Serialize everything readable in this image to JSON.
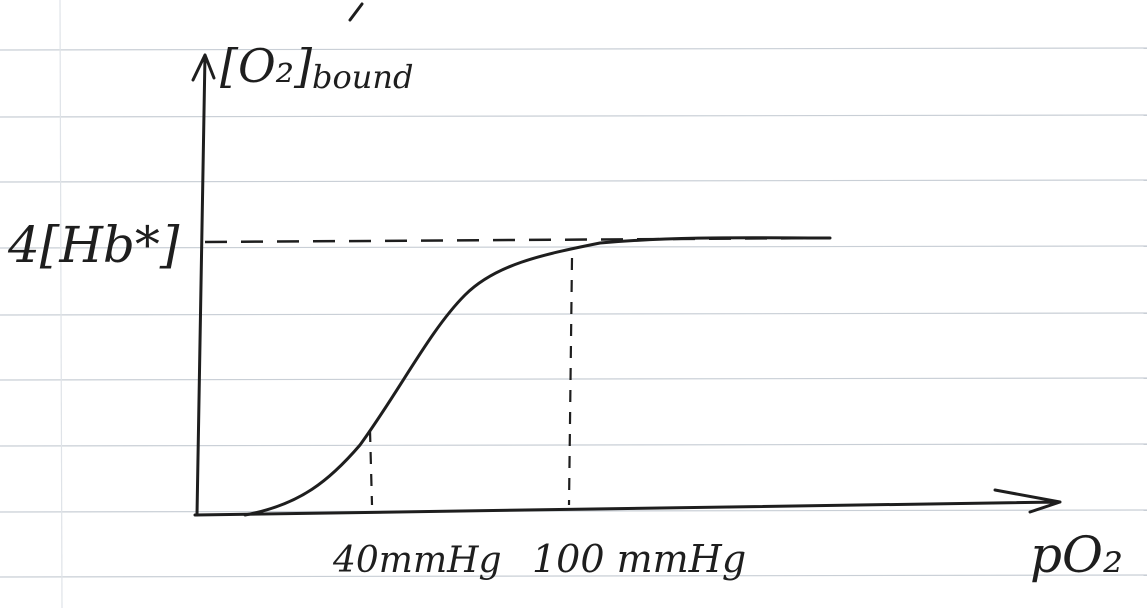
{
  "y_axis": {
    "label": "[O₂]",
    "subscript": "bound"
  },
  "x_axis": {
    "label": "pO₂"
  },
  "saturation_label": "4[Hb*]",
  "markers": [
    "40mmHg",
    "100 mmHg"
  ]
}
